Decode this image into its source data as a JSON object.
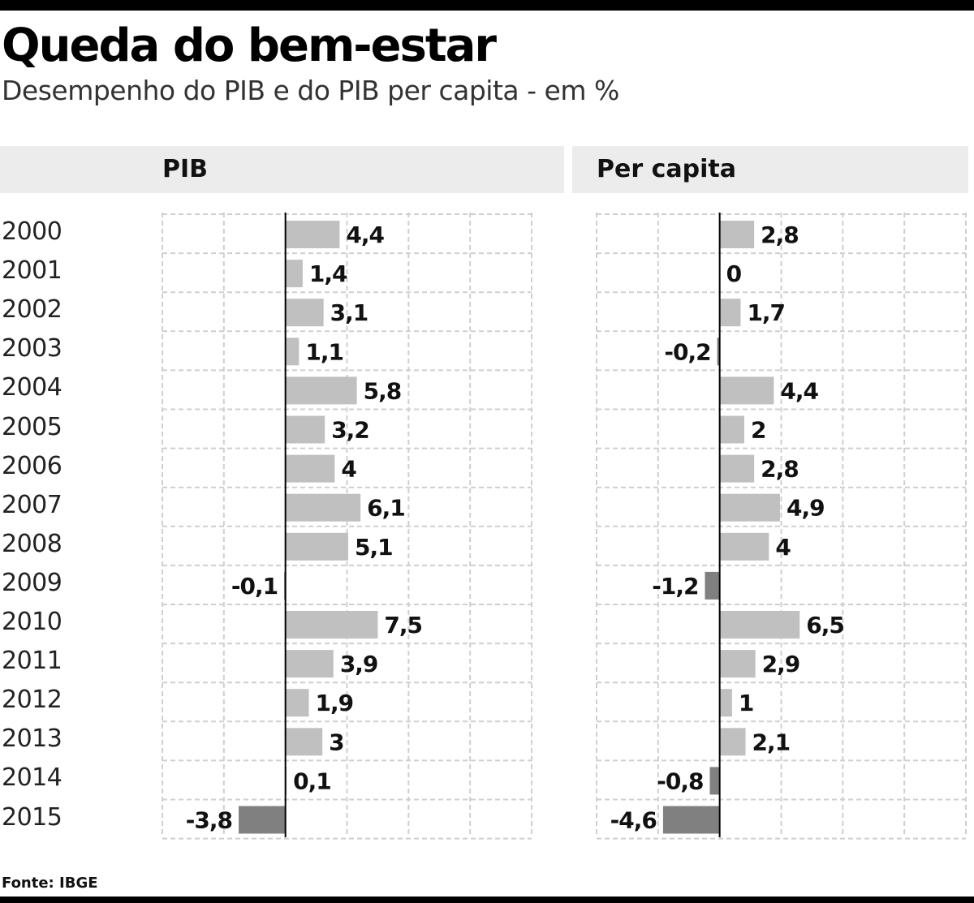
{
  "title": "Queda do bem-estar",
  "subtitle": "Desempenho do PIB e do PIB per capita - em %",
  "source": "Fonte: IBGE",
  "colors": {
    "positive": "#c0c0c0",
    "negative": "#808080",
    "grid": "#cfcfcf",
    "axis": "#000000",
    "panel_header": "#ececec"
  },
  "chart_data": [
    {
      "type": "bar",
      "orientation": "horizontal",
      "title": "PIB",
      "categories": [
        "2000",
        "2001",
        "2002",
        "2003",
        "2004",
        "2005",
        "2006",
        "2007",
        "2008",
        "2009",
        "2010",
        "2011",
        "2012",
        "2013",
        "2014",
        "2015"
      ],
      "values": [
        4.4,
        1.4,
        3.1,
        1.1,
        5.8,
        3.2,
        4,
        6.1,
        5.1,
        -0.1,
        7.5,
        3.9,
        1.9,
        3,
        0.1,
        -3.8
      ],
      "labels": [
        "4,4",
        "1,4",
        "3,1",
        "1,1",
        "5,8",
        "3,2",
        "4",
        "6,1",
        "5,1",
        "-0,1",
        "7,5",
        "3,9",
        "1,9",
        "3",
        "0,1",
        "-3,8"
      ],
      "xlim": [
        -10,
        20
      ],
      "grid": true
    },
    {
      "type": "bar",
      "orientation": "horizontal",
      "title": "Per capita",
      "categories": [
        "2000",
        "2001",
        "2002",
        "2003",
        "2004",
        "2005",
        "2006",
        "2007",
        "2008",
        "2009",
        "2010",
        "2011",
        "2012",
        "2013",
        "2014",
        "2015"
      ],
      "values": [
        2.8,
        0,
        1.7,
        -0.2,
        4.4,
        2,
        2.8,
        4.9,
        4,
        -1.2,
        6.5,
        2.9,
        1,
        2.1,
        -0.8,
        -4.6
      ],
      "labels": [
        "2,8",
        "0",
        "1,7",
        "-0,2",
        "4,4",
        "2",
        "2,8",
        "4,9",
        "4",
        "-1,2",
        "6,5",
        "2,9",
        "1",
        "2,1",
        "-0,8",
        "-4,6"
      ],
      "xlim": [
        -10,
        20
      ],
      "grid": true
    }
  ]
}
